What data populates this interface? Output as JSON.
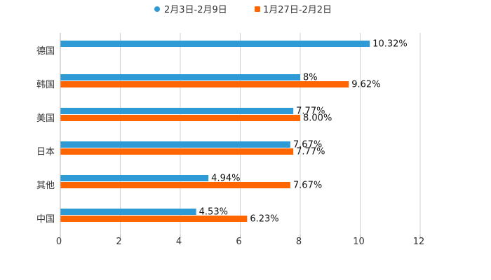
{
  "chart_data": {
    "type": "bar",
    "orientation": "horizontal",
    "title": "",
    "xlabel": "",
    "ylabel": "",
    "xlim": [
      0,
      12
    ],
    "xticks": [
      "0",
      "2",
      "4",
      "6",
      "8",
      "10",
      "12"
    ],
    "grid": true,
    "legend_position": "top",
    "categories": [
      "德国",
      "韩国",
      "美国",
      "日本",
      "其他",
      "中国"
    ],
    "series": [
      {
        "name": "2月3日-2月9日",
        "color": "#2e9bd6",
        "values": [
          10.32,
          8,
          7.77,
          7.67,
          4.94,
          4.53
        ],
        "labels": [
          "10.32%",
          "8%",
          "7.77%",
          "7.67%",
          "4.94%",
          "4.53%"
        ]
      },
      {
        "name": "1月27日-2月2日",
        "color": "#ff6600",
        "values": [
          null,
          9.62,
          8.0,
          7.77,
          7.67,
          6.23
        ],
        "labels": [
          "",
          "9.62%",
          "8.00%",
          "7.77%",
          "7.67%",
          "6.23%"
        ]
      }
    ]
  }
}
